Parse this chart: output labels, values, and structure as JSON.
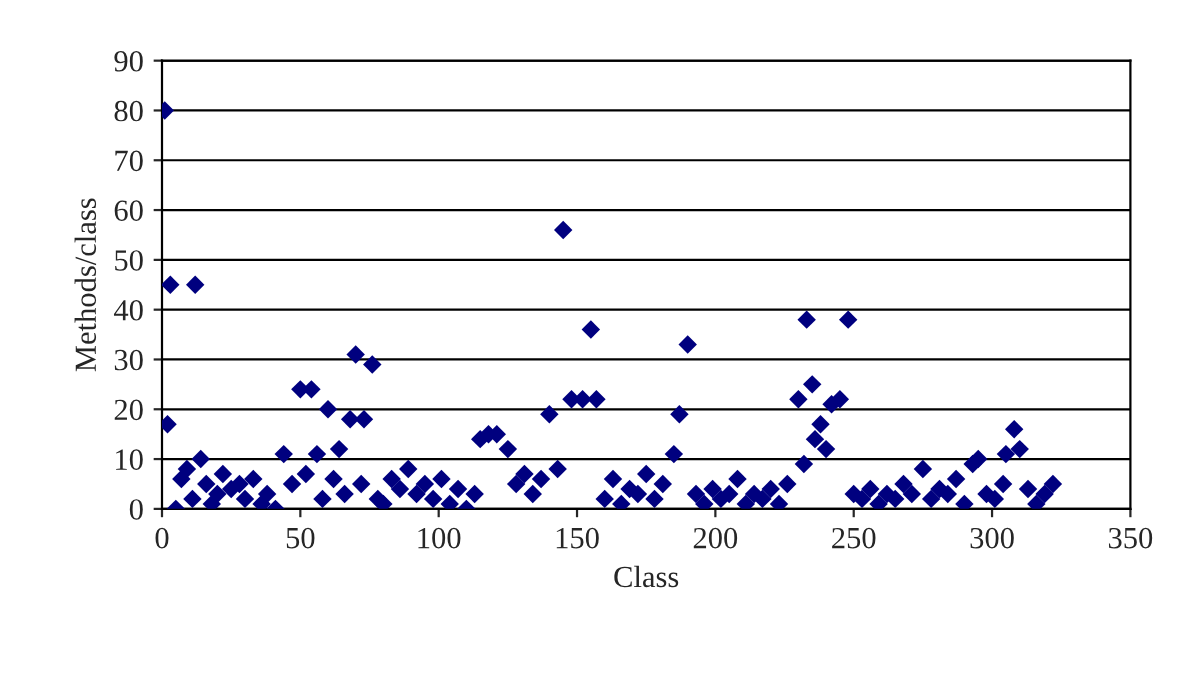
{
  "chart_data": {
    "type": "scatter",
    "xlabel": "Class",
    "ylabel": "Methods/class",
    "xlim": [
      0,
      350
    ],
    "ylim": [
      0,
      90
    ],
    "xticks": [
      0,
      50,
      100,
      150,
      200,
      250,
      300,
      350
    ],
    "yticks": [
      0,
      10,
      20,
      30,
      40,
      50,
      60,
      70,
      80,
      90
    ],
    "grid": "y",
    "marker": "diamond",
    "legend": false,
    "series": [
      {
        "color": "#00007f",
        "x": [
          1,
          2,
          3,
          12,
          5,
          7,
          9,
          11,
          14,
          16,
          18,
          20,
          22,
          25,
          28,
          30,
          33,
          36,
          38,
          41,
          44,
          47,
          50,
          54,
          52,
          56,
          58,
          60,
          62,
          64,
          66,
          68,
          70,
          73,
          76,
          72,
          78,
          80,
          83,
          86,
          89,
          92,
          95,
          98,
          101,
          104,
          107,
          110,
          113,
          115,
          118,
          121,
          125,
          128,
          131,
          134,
          137,
          140,
          143,
          145,
          148,
          152,
          155,
          157,
          160,
          163,
          166,
          169,
          172,
          175,
          178,
          181,
          185,
          187,
          190,
          193,
          196,
          199,
          202,
          205,
          208,
          211,
          214,
          217,
          220,
          223,
          226,
          230,
          232,
          233,
          235,
          236,
          238,
          240,
          242,
          245,
          248,
          250,
          253,
          256,
          259,
          262,
          265,
          268,
          271,
          275,
          278,
          281,
          284,
          287,
          290,
          293,
          295,
          298,
          301,
          304,
          305,
          308,
          310,
          313,
          316,
          319,
          322
        ],
        "values": [
          80,
          17,
          45,
          45,
          0,
          6,
          8,
          2,
          10,
          5,
          1,
          3,
          7,
          4,
          5,
          2,
          6,
          1,
          3,
          0,
          11,
          5,
          24,
          24,
          7,
          11,
          2,
          20,
          6,
          12,
          3,
          18,
          31,
          18,
          29,
          5,
          2,
          1,
          6,
          4,
          8,
          3,
          5,
          2,
          6,
          1,
          4,
          0,
          3,
          14,
          15,
          15,
          12,
          5,
          7,
          3,
          6,
          19,
          8,
          56,
          22,
          22,
          36,
          22,
          2,
          6,
          1,
          4,
          3,
          7,
          2,
          5,
          11,
          19,
          33,
          3,
          1,
          4,
          2,
          3,
          6,
          1,
          3,
          2,
          4,
          1,
          5,
          22,
          9,
          38,
          25,
          14,
          17,
          12,
          21,
          22,
          38,
          3,
          2,
          4,
          1,
          3,
          2,
          5,
          3,
          8,
          2,
          4,
          3,
          6,
          1,
          9,
          10,
          3,
          2,
          5,
          11,
          16,
          12,
          4,
          1,
          3,
          5
        ]
      }
    ]
  }
}
